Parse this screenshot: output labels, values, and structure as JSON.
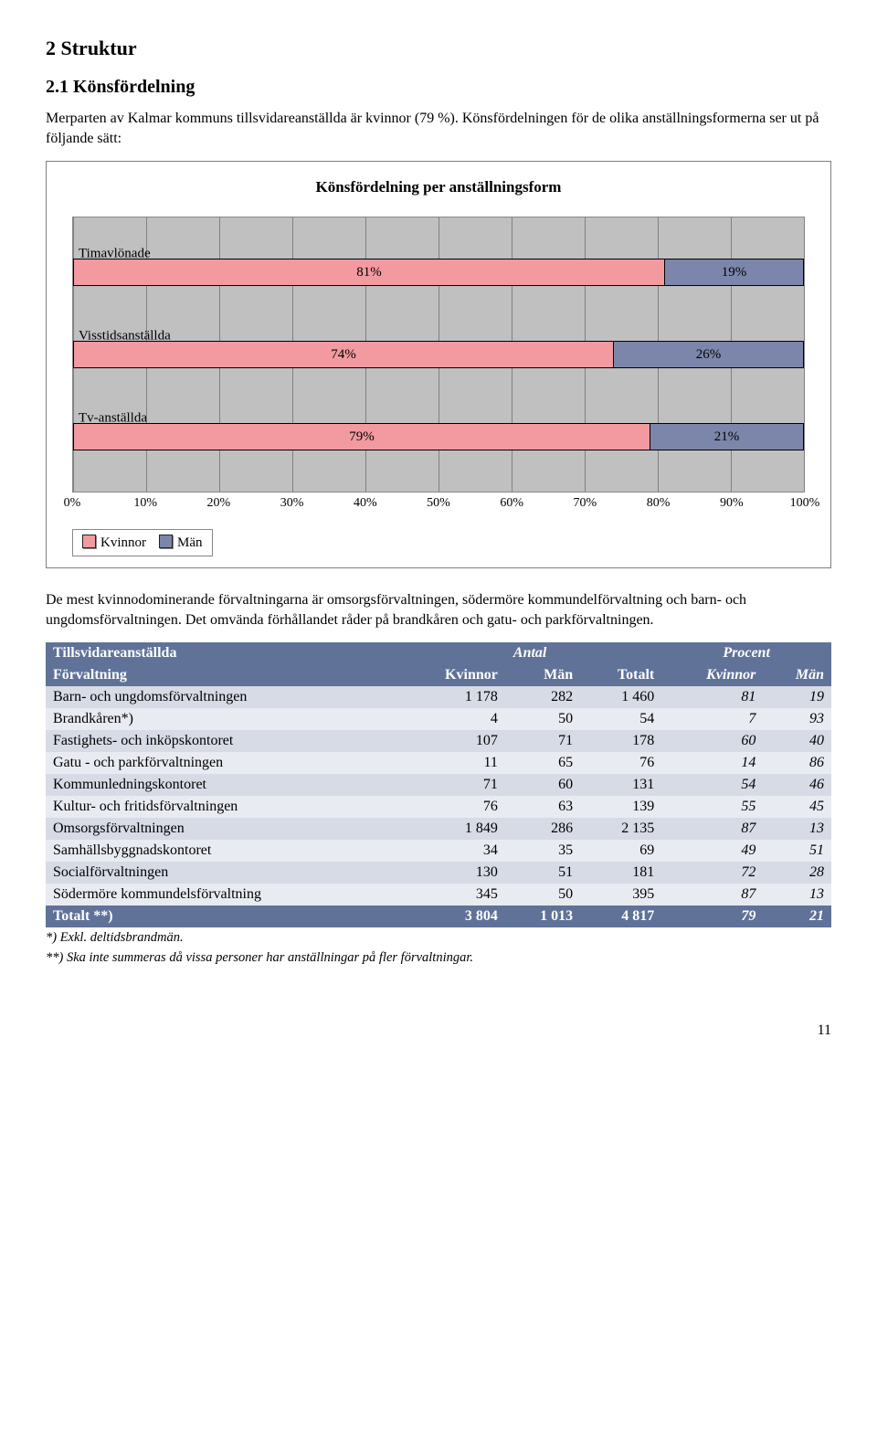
{
  "headings": {
    "h1": "2 Struktur",
    "h2": "2.1 Könsfördelning"
  },
  "intro_para": "Merparten av Kalmar kommuns tillsvidareanställda är kvinnor (79 %). Könsfördelningen för de olika anställningsformerna ser ut på följande sätt:",
  "chart": {
    "type": "stacked-horizontal-bar",
    "title": "Könsfördelning per anställningsform",
    "background_color": "#c0c0c0",
    "grid_color": "#808080",
    "series_colors": {
      "kvinnor": "#f29aa0",
      "man": "#7c86aa"
    },
    "xlim": [
      0,
      100
    ],
    "xtick_step": 10,
    "xticks": [
      "0%",
      "10%",
      "20%",
      "30%",
      "40%",
      "50%",
      "60%",
      "70%",
      "80%",
      "90%",
      "100%"
    ],
    "bars": [
      {
        "label": "Timavlönade",
        "kvinnor": 81,
        "man": 19,
        "kvinnor_label": "81%",
        "man_label": "19%"
      },
      {
        "label": "Visstidsanställda",
        "kvinnor": 74,
        "man": 26,
        "kvinnor_label": "74%",
        "man_label": "26%"
      },
      {
        "label": "Tv-anställda",
        "kvinnor": 79,
        "man": 21,
        "kvinnor_label": "79%",
        "man_label": "21%"
      }
    ],
    "legend": {
      "kvinnor": "Kvinnor",
      "man": "Män"
    }
  },
  "mid_para": "De mest kvinnodominerande förvaltningarna är omsorgsförvaltningen, södermöre kommundelförvaltning och barn- och ungdomsförvaltningen. Det omvända förhållandet råder på brandkåren och gatu- och parkförvaltningen.",
  "table": {
    "header1": {
      "left": "Tillsvidareanställda",
      "antal": "Antal",
      "procent": "Procent"
    },
    "header2": {
      "forvaltning": "Förvaltning",
      "kvinnor": "Kvinnor",
      "man": "Män",
      "totalt": "Totalt",
      "pkvinnor": "Kvinnor",
      "pman": "Män"
    },
    "header_bg": "#607298",
    "header_fg": "#ffffff",
    "band_a_bg": "#d7dbe6",
    "band_b_bg": "#e9ebf2",
    "rows": [
      {
        "name": "Barn- och ungdomsförvaltningen",
        "kvinnor": "1 178",
        "man": "282",
        "totalt": "1 460",
        "pk": "81",
        "pm": "19"
      },
      {
        "name": "Brandkåren*)",
        "kvinnor": "4",
        "man": "50",
        "totalt": "54",
        "pk": "7",
        "pm": "93"
      },
      {
        "name": "Fastighets- och inköpskontoret",
        "kvinnor": "107",
        "man": "71",
        "totalt": "178",
        "pk": "60",
        "pm": "40"
      },
      {
        "name": "Gatu - och parkförvaltningen",
        "kvinnor": "11",
        "man": "65",
        "totalt": "76",
        "pk": "14",
        "pm": "86"
      },
      {
        "name": "Kommunledningskontoret",
        "kvinnor": "71",
        "man": "60",
        "totalt": "131",
        "pk": "54",
        "pm": "46"
      },
      {
        "name": "Kultur- och fritidsförvaltningen",
        "kvinnor": "76",
        "man": "63",
        "totalt": "139",
        "pk": "55",
        "pm": "45"
      },
      {
        "name": "Omsorgsförvaltningen",
        "kvinnor": "1 849",
        "man": "286",
        "totalt": "2 135",
        "pk": "87",
        "pm": "13"
      },
      {
        "name": "Samhällsbyggnadskontoret",
        "kvinnor": "34",
        "man": "35",
        "totalt": "69",
        "pk": "49",
        "pm": "51"
      },
      {
        "name": "Socialförvaltningen",
        "kvinnor": "130",
        "man": "51",
        "totalt": "181",
        "pk": "72",
        "pm": "28"
      },
      {
        "name": "Södermöre kommundelsförvaltning",
        "kvinnor": "345",
        "man": "50",
        "totalt": "395",
        "pk": "87",
        "pm": "13"
      }
    ],
    "total": {
      "name": "Totalt **)",
      "kvinnor": "3 804",
      "man": "1 013",
      "totalt": "4 817",
      "pk": "79",
      "pm": "21"
    }
  },
  "footnotes": {
    "f1": "*) Exkl. deltidsbrandmän.",
    "f2": "**) Ska inte summeras då vissa personer har anställningar på fler förvaltningar."
  },
  "page_number": "11"
}
